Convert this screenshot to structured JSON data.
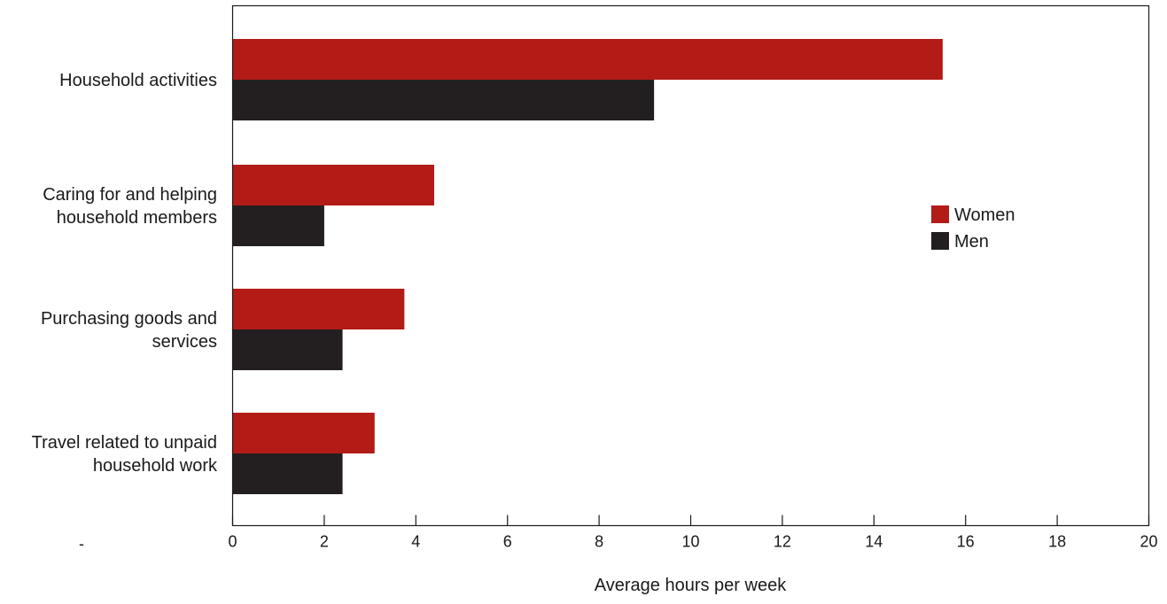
{
  "chart_data": {
    "type": "bar",
    "orientation": "horizontal",
    "categories": [
      [
        "Household activities"
      ],
      [
        "Caring for and helping",
        "household members"
      ],
      [
        "Purchasing goods and",
        "services"
      ],
      [
        "Travel related to unpaid",
        "household work"
      ]
    ],
    "series": [
      {
        "name": "Women",
        "color": "#b31b17",
        "values": [
          15.5,
          4.4,
          3.75,
          3.1
        ]
      },
      {
        "name": "Men",
        "color": "#231f20",
        "values": [
          9.2,
          2.0,
          2.4,
          2.4
        ]
      }
    ],
    "xlabel": "Average hours per week",
    "xlim": [
      0,
      20
    ],
    "xticks": [
      0,
      2,
      4,
      6,
      8,
      10,
      12,
      14,
      16,
      18,
      20
    ],
    "grid": false,
    "legend_position": "right",
    "stray_mark": "-"
  }
}
